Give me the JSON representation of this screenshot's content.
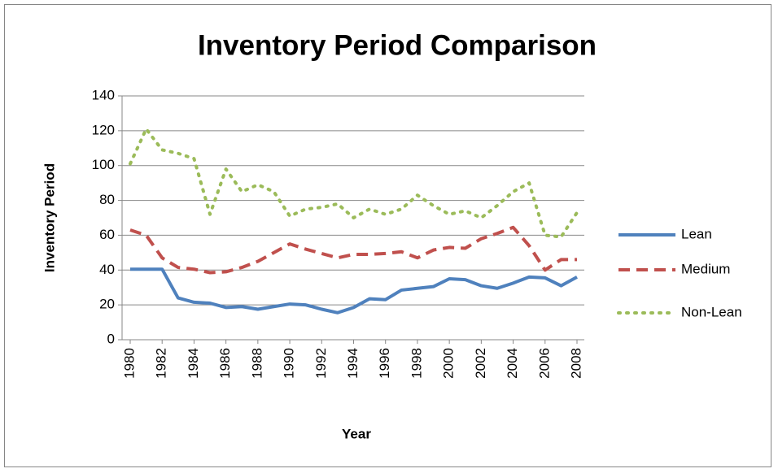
{
  "chart_data": {
    "type": "line",
    "title": "Inventory Period Comparison",
    "xlabel": "Year",
    "ylabel": "Inventory Period",
    "x": [
      1980,
      1981,
      1982,
      1983,
      1984,
      1985,
      1986,
      1987,
      1988,
      1989,
      1990,
      1991,
      1992,
      1993,
      1994,
      1995,
      1996,
      1997,
      1998,
      1999,
      2000,
      2001,
      2002,
      2003,
      2004,
      2005,
      2006,
      2007,
      2008
    ],
    "xlim": [
      1980,
      2008
    ],
    "xticks": [
      1980,
      1982,
      1984,
      1986,
      1988,
      1990,
      1992,
      1994,
      1996,
      1998,
      2000,
      2002,
      2004,
      2006,
      2008
    ],
    "ylim": [
      0,
      140
    ],
    "yticks": [
      0,
      20,
      40,
      60,
      80,
      100,
      120,
      140
    ],
    "grid": true,
    "legend": "right",
    "series": [
      {
        "name": "Lean",
        "color": "#4f81bd",
        "dash": "solid",
        "values": [
          40.5,
          40.5,
          40.5,
          24,
          21.5,
          21,
          18.5,
          19,
          17.5,
          19,
          20.5,
          20,
          17.5,
          15.5,
          18.5,
          23.5,
          23,
          28.5,
          29.5,
          30.5,
          35,
          34.5,
          31,
          29.5,
          32.5,
          36,
          35.5,
          31,
          36
        ]
      },
      {
        "name": "Medium",
        "color": "#c0504d",
        "dash": "dashed",
        "values": [
          63,
          60,
          47,
          41.5,
          40.5,
          38.5,
          39,
          41.5,
          45,
          50,
          55,
          52,
          49.5,
          47,
          49,
          49,
          49.5,
          50.5,
          47,
          51.5,
          53,
          52.5,
          58,
          61,
          64.5,
          54,
          40,
          46,
          46
        ]
      },
      {
        "name": "Non-Lean",
        "color": "#9bbb59",
        "dash": "dotted",
        "values": [
          101,
          121,
          109,
          107,
          104,
          72,
          98,
          85,
          89,
          85,
          71,
          75,
          76,
          78,
          70,
          75,
          72,
          75,
          83,
          77,
          72,
          74,
          70,
          77,
          85,
          90,
          60,
          59,
          73
        ]
      }
    ]
  }
}
